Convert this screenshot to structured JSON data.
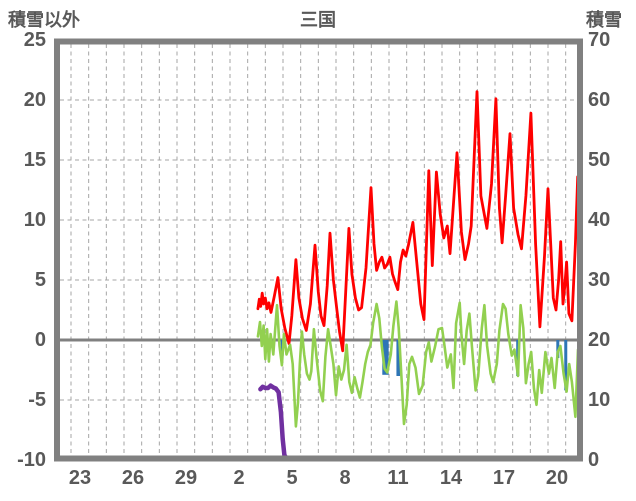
{
  "header": {
    "left_axis_title": "積雪以外",
    "chart_title": "三国",
    "right_axis_title": "積雪"
  },
  "colors": {
    "temperature_red": "#ff0000",
    "green_series": "#92d050",
    "precip_blue": "#2e75b6",
    "snow_purple": "#7030a0",
    "frame_gray": "#808080",
    "zero_line_gray": "#808080",
    "gridline_gray": "#a6a6a6",
    "label_text": "#595959",
    "background": "#ffffff"
  },
  "axes": {
    "left": {
      "title": "積雪以外",
      "ticks": [
        "25",
        "20",
        "15",
        "10",
        "5",
        "0",
        "-5",
        "-10"
      ],
      "range": [
        -10,
        25
      ],
      "tick_step": 5
    },
    "right": {
      "title": "積雪",
      "ticks": [
        "70",
        "60",
        "50",
        "40",
        "30",
        "20",
        "10",
        "0"
      ],
      "range": [
        0,
        70
      ],
      "tick_step": 10
    },
    "x": {
      "tick_labels": [
        "23",
        "26",
        "29",
        "2",
        "5",
        "8",
        "11",
        "14",
        "17",
        "20"
      ],
      "tick_positions_days": [
        0.5,
        3.5,
        6.5,
        9.5,
        12.5,
        15.5,
        18.5,
        21.5,
        24.5,
        27.5
      ],
      "gridline_interval_days": 1,
      "range_days": [
        -0.8,
        28.75
      ],
      "note": "x unit = days since first daily gridline; date labels sit at noon of each labeled day"
    },
    "grid": {
      "horizontal_dashed_at_left_values": [
        20,
        15,
        10,
        5,
        -5
      ],
      "zero_line_solid": true,
      "vertical_dashed_daily": true
    }
  },
  "chart_data": {
    "type": "line",
    "title": "三国",
    "legend": "none shown",
    "series": [
      {
        "name": "red-line-temperature",
        "axis": "left",
        "color_key": "temperature_red",
        "points": [
          [
            10.58,
            2.6
          ],
          [
            10.66,
            3.4
          ],
          [
            10.74,
            2.8
          ],
          [
            10.82,
            3.9
          ],
          [
            10.9,
            3.0
          ],
          [
            11.0,
            3.5
          ],
          [
            11.1,
            2.6
          ],
          [
            11.2,
            3.1
          ],
          [
            11.32,
            2.3
          ],
          [
            11.5,
            3.6
          ],
          [
            11.71,
            5.2
          ],
          [
            11.9,
            2.6
          ],
          [
            12.1,
            1.0
          ],
          [
            12.34,
            -0.3
          ],
          [
            12.5,
            2.0
          ],
          [
            12.73,
            6.7
          ],
          [
            12.9,
            3.5
          ],
          [
            13.1,
            1.8
          ],
          [
            13.32,
            0.8
          ],
          [
            13.55,
            3.0
          ],
          [
            13.81,
            7.9
          ],
          [
            14.0,
            4.0
          ],
          [
            14.15,
            2.0
          ],
          [
            14.32,
            1.2
          ],
          [
            14.5,
            4.5
          ],
          [
            14.66,
            8.9
          ],
          [
            14.85,
            5.0
          ],
          [
            15.05,
            2.5
          ],
          [
            15.2,
            0.7
          ],
          [
            15.38,
            -0.9
          ],
          [
            15.55,
            4.0
          ],
          [
            15.73,
            9.3
          ],
          [
            15.9,
            5.5
          ],
          [
            16.1,
            3.5
          ],
          [
            16.28,
            2.5
          ],
          [
            16.45,
            2.7
          ],
          [
            16.7,
            6.0
          ],
          [
            16.98,
            12.7
          ],
          [
            17.15,
            8.0
          ],
          [
            17.3,
            5.8
          ],
          [
            17.45,
            6.5
          ],
          [
            17.6,
            6.9
          ],
          [
            17.75,
            6.0
          ],
          [
            17.9,
            6.3
          ],
          [
            18.05,
            6.9
          ],
          [
            18.2,
            5.5
          ],
          [
            18.35,
            4.8
          ],
          [
            18.5,
            4.2
          ],
          [
            18.65,
            6.5
          ],
          [
            18.8,
            7.5
          ],
          [
            18.95,
            7.0
          ],
          [
            19.1,
            7.9
          ],
          [
            19.35,
            9.8
          ],
          [
            19.6,
            6.0
          ],
          [
            19.8,
            3.0
          ],
          [
            19.98,
            1.7
          ],
          [
            20.25,
            14.1
          ],
          [
            20.45,
            6.2
          ],
          [
            20.68,
            14.0
          ],
          [
            20.9,
            10.5
          ],
          [
            21.1,
            8.5
          ],
          [
            21.3,
            9.5
          ],
          [
            21.45,
            7.2
          ],
          [
            21.85,
            15.6
          ],
          [
            22.1,
            9.0
          ],
          [
            22.3,
            6.7
          ],
          [
            22.5,
            8.0
          ],
          [
            22.65,
            9.5
          ],
          [
            22.98,
            20.7
          ],
          [
            23.2,
            12.0
          ],
          [
            23.54,
            9.3
          ],
          [
            23.8,
            13.0
          ],
          [
            24.05,
            20.1
          ],
          [
            24.25,
            11.0
          ],
          [
            24.4,
            8.1
          ],
          [
            24.6,
            12.0
          ],
          [
            24.85,
            17.2
          ],
          [
            25.05,
            11.0
          ],
          [
            25.3,
            8.8
          ],
          [
            25.5,
            7.6
          ],
          [
            25.75,
            12.0
          ],
          [
            26.03,
            18.9
          ],
          [
            26.3,
            8.0
          ],
          [
            26.54,
            1.1
          ],
          [
            26.8,
            7.0
          ],
          [
            27.0,
            12.6
          ],
          [
            27.15,
            8.0
          ],
          [
            27.3,
            3.5
          ],
          [
            27.45,
            2.5
          ],
          [
            27.6,
            5.0
          ],
          [
            27.72,
            8.2
          ],
          [
            27.85,
            3.0
          ],
          [
            27.95,
            4.5
          ],
          [
            28.05,
            6.5
          ],
          [
            28.18,
            2.2
          ],
          [
            28.35,
            1.6
          ],
          [
            28.55,
            8.0
          ],
          [
            28.68,
            13.6
          ],
          [
            28.8,
            3.9
          ]
        ]
      },
      {
        "name": "green-line",
        "axis": "left",
        "color_key": "green_series",
        "points": [
          [
            10.58,
            0.3
          ],
          [
            10.7,
            1.5
          ],
          [
            10.8,
            -0.5
          ],
          [
            10.9,
            1.2
          ],
          [
            11.0,
            -1.6
          ],
          [
            11.1,
            0.9
          ],
          [
            11.2,
            -1.8
          ],
          [
            11.3,
            0.5
          ],
          [
            11.45,
            -1.2
          ],
          [
            11.66,
            2.9
          ],
          [
            11.8,
            -0.5
          ],
          [
            11.94,
            -2.1
          ],
          [
            12.05,
            0.5
          ],
          [
            12.2,
            -1.2
          ],
          [
            12.4,
            -0.4
          ],
          [
            12.55,
            -2.0
          ],
          [
            12.73,
            -7.2
          ],
          [
            12.85,
            -5.2
          ],
          [
            12.95,
            -2.0
          ],
          [
            13.07,
            0.7
          ],
          [
            13.2,
            -1.2
          ],
          [
            13.35,
            -2.8
          ],
          [
            13.5,
            -3.3
          ],
          [
            13.6,
            -2.6
          ],
          [
            13.75,
            0.9
          ],
          [
            13.9,
            -1.5
          ],
          [
            14.1,
            -4.2
          ],
          [
            14.25,
            -5.1
          ],
          [
            14.4,
            -1.4
          ],
          [
            14.55,
            0.9
          ],
          [
            14.7,
            -0.5
          ],
          [
            14.85,
            -2.0
          ],
          [
            15.0,
            -4.6
          ],
          [
            15.15,
            -2.2
          ],
          [
            15.3,
            -3.3
          ],
          [
            15.45,
            -2.5
          ],
          [
            15.6,
            -0.4
          ],
          [
            15.75,
            -3.5
          ],
          [
            15.9,
            -4.4
          ],
          [
            16.05,
            -3.1
          ],
          [
            16.2,
            -4.0
          ],
          [
            16.35,
            -4.8
          ],
          [
            16.5,
            -3.5
          ],
          [
            16.65,
            -2.0
          ],
          [
            16.8,
            -1.0
          ],
          [
            16.95,
            -0.4
          ],
          [
            17.1,
            1.4
          ],
          [
            17.3,
            3.0
          ],
          [
            17.45,
            1.8
          ],
          [
            17.6,
            -0.6
          ],
          [
            17.75,
            -2.4
          ],
          [
            17.9,
            -2.7
          ],
          [
            18.1,
            -1.2
          ],
          [
            18.25,
            1.2
          ],
          [
            18.42,
            3.2
          ],
          [
            18.55,
            1.0
          ],
          [
            18.7,
            -3.0
          ],
          [
            18.85,
            -7.0
          ],
          [
            19.0,
            -5.4
          ],
          [
            19.15,
            -2.0
          ],
          [
            19.3,
            -1.4
          ],
          [
            19.5,
            -2.3
          ],
          [
            19.7,
            -4.5
          ],
          [
            19.9,
            -3.8
          ],
          [
            20.1,
            -1.0
          ],
          [
            20.25,
            -0.2
          ],
          [
            20.4,
            -1.8
          ],
          [
            20.6,
            -0.6
          ],
          [
            20.8,
            0.9
          ],
          [
            21.0,
            1.0
          ],
          [
            21.15,
            -0.6
          ],
          [
            21.3,
            -2.3
          ],
          [
            21.5,
            -1.2
          ],
          [
            21.65,
            -4.0
          ],
          [
            21.8,
            1.4
          ],
          [
            22.0,
            3.1
          ],
          [
            22.1,
            0.5
          ],
          [
            22.25,
            -2.0
          ],
          [
            22.4,
            0.8
          ],
          [
            22.55,
            2.2
          ],
          [
            22.7,
            -0.6
          ],
          [
            22.9,
            -4.2
          ],
          [
            23.05,
            -3.0
          ],
          [
            23.25,
            1.0
          ],
          [
            23.4,
            2.9
          ],
          [
            23.55,
            -0.5
          ],
          [
            23.75,
            -2.8
          ],
          [
            23.9,
            -3.5
          ],
          [
            24.1,
            -2.0
          ],
          [
            24.25,
            0.8
          ],
          [
            24.45,
            3.0
          ],
          [
            24.6,
            2.6
          ],
          [
            24.75,
            0.5
          ],
          [
            24.95,
            -1.3
          ],
          [
            25.1,
            -0.8
          ],
          [
            25.3,
            -3.0
          ],
          [
            25.45,
            2.9
          ],
          [
            25.6,
            1.0
          ],
          [
            25.75,
            -3.6
          ],
          [
            25.9,
            -2.0
          ],
          [
            26.05,
            -1.0
          ],
          [
            26.2,
            -4.0
          ],
          [
            26.35,
            -5.4
          ],
          [
            26.5,
            -2.5
          ],
          [
            26.65,
            -4.4
          ],
          [
            26.85,
            -1.0
          ],
          [
            27.05,
            -2.8
          ],
          [
            27.2,
            -1.5
          ],
          [
            27.38,
            -4.0
          ],
          [
            27.55,
            -1.0
          ],
          [
            27.7,
            -0.5
          ],
          [
            27.88,
            -2.8
          ],
          [
            28.05,
            -4.3
          ],
          [
            28.2,
            -2.0
          ],
          [
            28.35,
            -3.5
          ],
          [
            28.55,
            -6.4
          ],
          [
            28.7,
            -0.8
          ],
          [
            28.8,
            -1.2
          ]
        ]
      },
      {
        "name": "purple-line-snow-depth",
        "axis": "right",
        "color_key": "snow_purple",
        "points": [
          [
            10.72,
            11.8
          ],
          [
            10.85,
            12.2
          ],
          [
            11.0,
            12.0
          ],
          [
            11.15,
            12.0
          ],
          [
            11.3,
            12.4
          ],
          [
            11.45,
            12.1
          ],
          [
            11.6,
            11.9
          ],
          [
            11.75,
            11.3
          ],
          [
            11.88,
            8.0
          ],
          [
            11.98,
            3.5
          ],
          [
            12.08,
            0.8
          ],
          [
            12.2,
            0.3
          ],
          [
            28.8,
            0.3
          ]
        ]
      }
    ],
    "bars": {
      "name": "blue-bars",
      "axis": "left",
      "color_key": "precip_blue",
      "baseline": 0,
      "segments": [
        [
          11.87,
          11.99,
          -1.3
        ],
        [
          17.62,
          17.98,
          -2.9
        ],
        [
          18.42,
          18.63,
          -3.0
        ],
        [
          25.2,
          25.38,
          -3.0
        ],
        [
          27.47,
          27.63,
          -1.5
        ],
        [
          27.92,
          28.08,
          -4.2
        ]
      ]
    }
  }
}
